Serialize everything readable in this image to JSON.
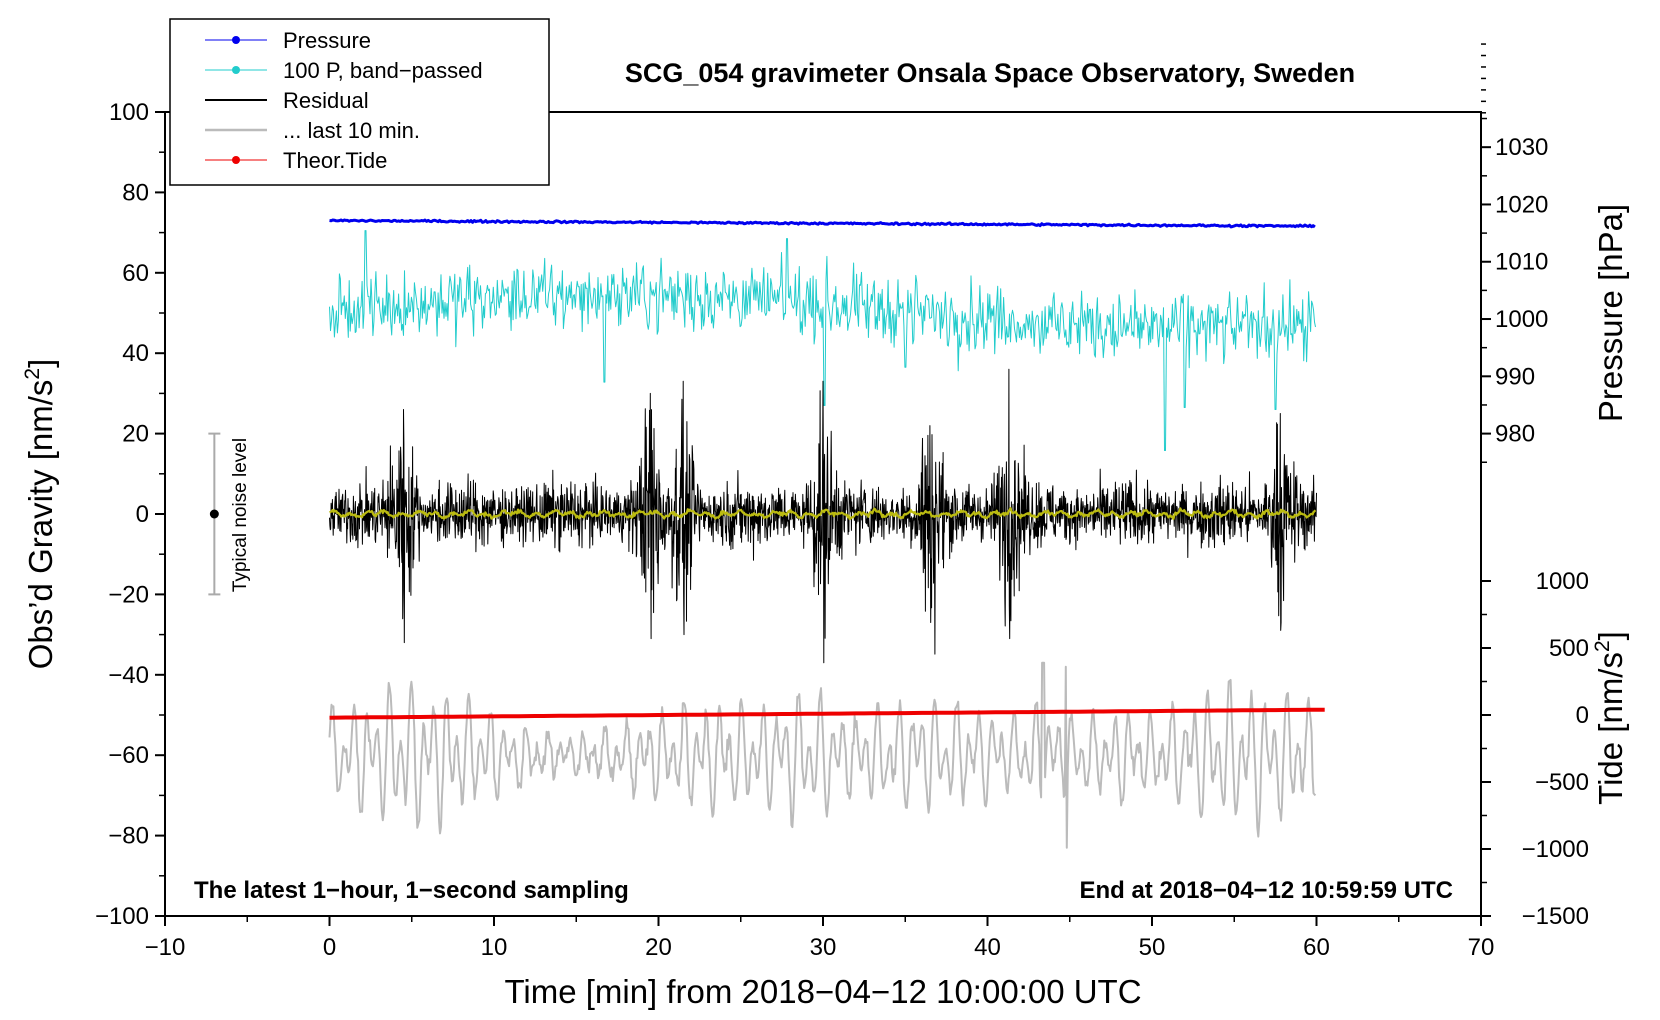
{
  "chart_data": {
    "type": "line",
    "title": "SCG_054 gravimeter Onsala Space Observatory, Sweden",
    "xlabel": "Time [min] from 2018−04−12 10:00:00 UTC",
    "ylabel_left": "Obs’d Gravity [nm/s",
    "ylabel_left_sup": "2",
    "ylabel_left_end": "]",
    "ylabel_right_pressure": "Pressure [hPa]",
    "ylabel_right_tide": "Tide [nm/s",
    "ylabel_right_tide_sup": "2",
    "ylabel_right_tide_end": "]",
    "xlim": [
      -10,
      70
    ],
    "ylim_left": [
      -100,
      100
    ],
    "x_ticks": [
      -10,
      0,
      10,
      20,
      30,
      40,
      50,
      60,
      70
    ],
    "x_tick_labels": [
      "−10",
      "0",
      "10",
      "20",
      "30",
      "40",
      "50",
      "60",
      "70"
    ],
    "y_ticks_left": [
      -100,
      -80,
      -60,
      -40,
      -20,
      0,
      20,
      40,
      60,
      80,
      100
    ],
    "y_tick_labels_left": [
      "−100",
      "−80",
      "−60",
      "−40",
      "−20",
      "0",
      "20",
      "40",
      "60",
      "80",
      "100"
    ],
    "pressure_axis": {
      "ticks": [
        980,
        990,
        1000,
        1010,
        1020,
        1030
      ],
      "tick_labels": [
        "980",
        "990",
        "1000",
        "1010",
        "1020",
        "1030"
      ],
      "map_pressure": [
        1020,
        980
      ],
      "map_gravity": [
        77.0,
        20.0
      ]
    },
    "tide_axis": {
      "ticks": [
        -1500,
        -1000,
        -500,
        0,
        500,
        1000
      ],
      "tick_labels": [
        "−1500",
        "−1000",
        "−500",
        "0",
        "500",
        "1000"
      ],
      "map_tide": [
        0,
        -1500
      ],
      "map_gravity": [
        -50.0,
        -100.0
      ]
    },
    "legend": {
      "placement": "top-left",
      "entries": [
        {
          "label": "Pressure",
          "color": "#0000ee",
          "marker": true
        },
        {
          "label": "100 P, band−passed",
          "color": "#22cccc",
          "marker": true
        },
        {
          "label": "Residual",
          "color": "#000000",
          "marker": false
        },
        {
          "label": "... last 10 min.",
          "color": "#bbbbbb",
          "marker": false
        },
        {
          "label": "Theor.Tide",
          "color": "#ee0000",
          "marker": true
        }
      ]
    },
    "annotations": {
      "sampling_note": "The latest 1−hour, 1−second sampling",
      "end_note": "End at 2018−04−12 10:59:59 UTC",
      "noise_label": "Typical noise level",
      "noise_bar": {
        "x": -7,
        "center": 0,
        "low": -20,
        "high": 20
      }
    },
    "series": [
      {
        "name": "Pressure",
        "color": "#0000ee",
        "x_range": [
          0,
          60
        ],
        "gravity_start": 73.0,
        "gravity_end": 71.6,
        "jitter": 0.3
      },
      {
        "name": "100 P, band−passed",
        "color": "#22cccc",
        "x_range": [
          0,
          60
        ],
        "mean": 50.5,
        "amplitude": 7,
        "spikes": [
          [
            2.2,
            70.5
          ],
          [
            16.7,
            32.8
          ],
          [
            27.8,
            68.5
          ],
          [
            30.1,
            27.0
          ],
          [
            50.8,
            15.8
          ],
          [
            52.0,
            26.5
          ],
          [
            57.5,
            26.0
          ],
          [
            35.0,
            36.5
          ]
        ]
      },
      {
        "name": "Residual",
        "color": "#000000",
        "x_range": [
          0,
          60
        ],
        "amplitude": 9,
        "peaks": [
          [
            4.5,
            26,
            -32
          ],
          [
            19.5,
            30,
            -31
          ],
          [
            21.5,
            33,
            -30
          ],
          [
            30.0,
            33,
            -37
          ],
          [
            36.5,
            22,
            -27
          ],
          [
            41.3,
            36,
            -31
          ],
          [
            57.8,
            25,
            -27
          ]
        ]
      },
      {
        "name": "Smoothed residual",
        "color": "#bbbb11",
        "x_range": [
          0,
          60
        ],
        "amplitude": 0.8
      },
      {
        "name": "... last 10 min.",
        "color": "#bbbbbb",
        "x_range": [
          0,
          60
        ],
        "mean": -60,
        "amplitude": 10,
        "peaks": [
          [
            43.4,
            -37,
            -88
          ],
          [
            44.8,
            -38,
            -83
          ]
        ]
      },
      {
        "name": "Theor.Tide",
        "color": "#ee0000",
        "x_range": [
          0,
          60.8
        ],
        "tide_start": -20,
        "tide_end": 40
      }
    ]
  }
}
